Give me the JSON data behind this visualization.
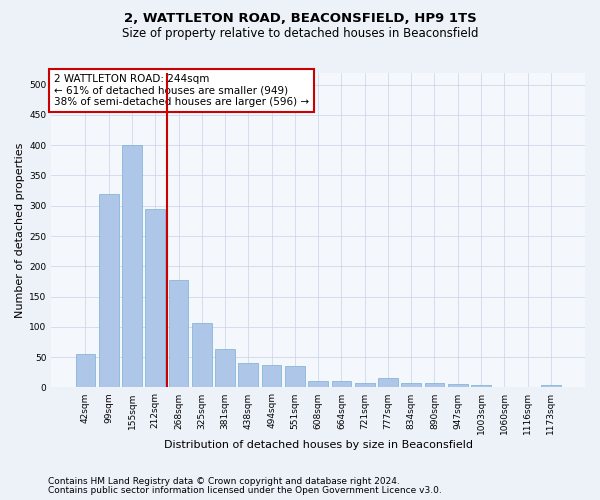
{
  "title": "2, WATTLETON ROAD, BEACONSFIELD, HP9 1TS",
  "subtitle": "Size of property relative to detached houses in Beaconsfield",
  "xlabel": "Distribution of detached houses by size in Beaconsfield",
  "ylabel": "Number of detached properties",
  "categories": [
    "42sqm",
    "99sqm",
    "155sqm",
    "212sqm",
    "268sqm",
    "325sqm",
    "381sqm",
    "438sqm",
    "494sqm",
    "551sqm",
    "608sqm",
    "664sqm",
    "721sqm",
    "777sqm",
    "834sqm",
    "890sqm",
    "947sqm",
    "1003sqm",
    "1060sqm",
    "1116sqm",
    "1173sqm"
  ],
  "values": [
    55,
    320,
    400,
    295,
    177,
    107,
    63,
    41,
    37,
    35,
    11,
    11,
    8,
    15,
    7,
    8,
    5,
    4,
    1,
    1,
    4
  ],
  "bar_color": "#aec6e8",
  "bar_edge_color": "#7aafd4",
  "vline_x": 3.5,
  "vline_color": "#cc0000",
  "annotation_text": "2 WATTLETON ROAD: 244sqm\n← 61% of detached houses are smaller (949)\n38% of semi-detached houses are larger (596) →",
  "annotation_box_color": "#ffffff",
  "annotation_box_edge_color": "#cc0000",
  "ylim": [
    0,
    520
  ],
  "yticks": [
    0,
    50,
    100,
    150,
    200,
    250,
    300,
    350,
    400,
    450,
    500
  ],
  "footer1": "Contains HM Land Registry data © Crown copyright and database right 2024.",
  "footer2": "Contains public sector information licensed under the Open Government Licence v3.0.",
  "bg_color": "#edf2f9",
  "plot_bg_color": "#f4f7fc",
  "grid_color": "#c8d4e8",
  "title_fontsize": 9.5,
  "subtitle_fontsize": 8.5,
  "axis_label_fontsize": 8,
  "tick_fontsize": 6.5,
  "annotation_fontsize": 7.5,
  "footer_fontsize": 6.5
}
